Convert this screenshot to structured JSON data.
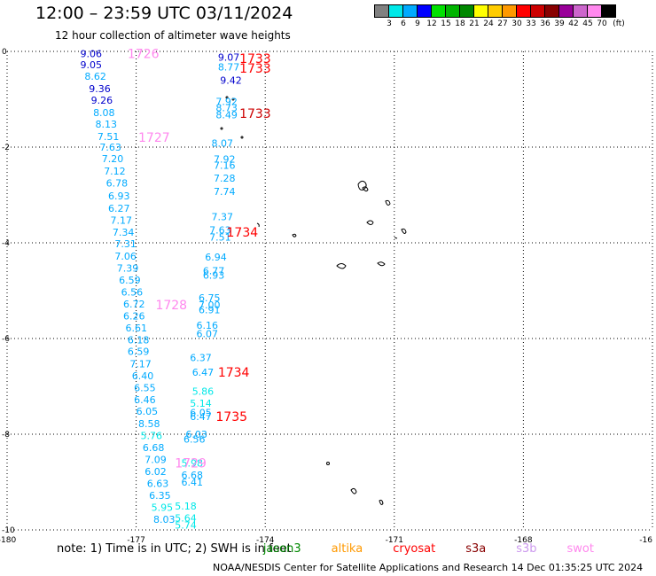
{
  "title": "12:00 – 23:59 UTC 03/11/2024",
  "subtitle": "12 hour collection of altimeter wave heights",
  "legend": {
    "unit": "(ft)",
    "colors": [
      "#808080",
      "#00e8e8",
      "#00aaff",
      "#0000ff",
      "#00e000",
      "#00b400",
      "#008800",
      "#ffff00",
      "#ffcc00",
      "#ff9900",
      "#ff0000",
      "#cc0000",
      "#880000",
      "#990099",
      "#cc66cc",
      "#ff88ee",
      "#000000"
    ],
    "ticks": [
      "3",
      "6",
      "9",
      "12",
      "15",
      "18",
      "21",
      "24",
      "27",
      "30",
      "33",
      "36",
      "39",
      "42",
      "45",
      "70"
    ]
  },
  "chart_data": {
    "type": "scatter",
    "x_ticks": [
      "-180",
      "-177",
      "-174",
      "-171",
      "-168",
      "-16"
    ],
    "y_ticks": [
      "0",
      "-2",
      "-4",
      "-6",
      "-8",
      "-10"
    ],
    "xlim": [
      -180,
      -165
    ],
    "ylim": [
      -10,
      0
    ],
    "wave_heights": [
      {
        "v": "9.06",
        "c": "#0000cc",
        "x": -178.3,
        "y": -0.05
      },
      {
        "v": "9.05",
        "c": "#0000cc",
        "x": -178.3,
        "y": -0.28
      },
      {
        "v": "8.62",
        "c": "#00aaff",
        "x": -178.2,
        "y": -0.52
      },
      {
        "v": "9.36",
        "c": "#0000cc",
        "x": -178.1,
        "y": -0.78
      },
      {
        "v": "9.26",
        "c": "#0000cc",
        "x": -178.05,
        "y": -1.02
      },
      {
        "v": "8.08",
        "c": "#00aaff",
        "x": -178.0,
        "y": -1.28
      },
      {
        "v": "8.13",
        "c": "#00aaff",
        "x": -177.95,
        "y": -1.52
      },
      {
        "v": "7.51",
        "c": "#00aaff",
        "x": -177.9,
        "y": -1.78
      },
      {
        "v": "7.63",
        "c": "#00aaff",
        "x": -177.85,
        "y": -2.0
      },
      {
        "v": "7.20",
        "c": "#00aaff",
        "x": -177.8,
        "y": -2.24
      },
      {
        "v": "7.12",
        "c": "#00aaff",
        "x": -177.75,
        "y": -2.5
      },
      {
        "v": "6.78",
        "c": "#00aaff",
        "x": -177.7,
        "y": -2.75
      },
      {
        "v": "6.93",
        "c": "#00aaff",
        "x": -177.65,
        "y": -3.02
      },
      {
        "v": "6.27",
        "c": "#00aaff",
        "x": -177.65,
        "y": -3.28
      },
      {
        "v": "7.17",
        "c": "#00aaff",
        "x": -177.6,
        "y": -3.53
      },
      {
        "v": "7.34",
        "c": "#00aaff",
        "x": -177.55,
        "y": -3.78
      },
      {
        "v": "7.31",
        "c": "#00aaff",
        "x": -177.5,
        "y": -4.02
      },
      {
        "v": "7.06",
        "c": "#00aaff",
        "x": -177.5,
        "y": -4.28
      },
      {
        "v": "7.39",
        "c": "#00aaff",
        "x": -177.45,
        "y": -4.53
      },
      {
        "v": "6.59",
        "c": "#00aaff",
        "x": -177.4,
        "y": -4.78
      },
      {
        "v": "6.56",
        "c": "#00aaff",
        "x": -177.35,
        "y": -5.03
      },
      {
        "v": "6.72",
        "c": "#00aaff",
        "x": -177.3,
        "y": -5.28
      },
      {
        "v": "6.26",
        "c": "#00aaff",
        "x": -177.3,
        "y": -5.53
      },
      {
        "v": "6.61",
        "c": "#00aaff",
        "x": -177.25,
        "y": -5.78
      },
      {
        "v": "6.18",
        "c": "#00aaff",
        "x": -177.2,
        "y": -6.03
      },
      {
        "v": "6.59",
        "c": "#00aaff",
        "x": -177.2,
        "y": -6.27
      },
      {
        "v": "7.17",
        "c": "#00aaff",
        "x": -177.15,
        "y": -6.53
      },
      {
        "v": "6.40",
        "c": "#00aaff",
        "x": -177.1,
        "y": -6.78
      },
      {
        "v": "6.55",
        "c": "#00aaff",
        "x": -177.05,
        "y": -7.03
      },
      {
        "v": "6.46",
        "c": "#00aaff",
        "x": -177.05,
        "y": -7.28
      },
      {
        "v": "6.05",
        "c": "#00aaff",
        "x": -177.0,
        "y": -7.52
      },
      {
        "v": "8.58",
        "c": "#00aaff",
        "x": -176.95,
        "y": -7.78
      },
      {
        "v": "5.76",
        "c": "#00e8e8",
        "x": -176.9,
        "y": -8.03
      },
      {
        "v": "6.68",
        "c": "#00aaff",
        "x": -176.85,
        "y": -8.28
      },
      {
        "v": "7.09",
        "c": "#00aaff",
        "x": -176.8,
        "y": -8.53
      },
      {
        "v": "6.02",
        "c": "#00aaff",
        "x": -176.8,
        "y": -8.78
      },
      {
        "v": "6.63",
        "c": "#00aaff",
        "x": -176.75,
        "y": -9.03
      },
      {
        "v": "6.35",
        "c": "#00aaff",
        "x": -176.7,
        "y": -9.28
      },
      {
        "v": "5.95",
        "c": "#00e8e8",
        "x": -176.65,
        "y": -9.53
      },
      {
        "v": "8.03",
        "c": "#00aaff",
        "x": -176.6,
        "y": -9.78
      },
      {
        "v": "9.07",
        "c": "#0000cc",
        "x": -175.1,
        "y": -0.12
      },
      {
        "v": "8.77",
        "c": "#00aaff",
        "x": -175.1,
        "y": -0.32
      },
      {
        "v": "9.42",
        "c": "#0000cc",
        "x": -175.05,
        "y": -0.6
      },
      {
        "v": "7.92",
        "c": "#00aaff",
        "x": -175.15,
        "y": -1.05
      },
      {
        "v": "8.73",
        "c": "#00aaff",
        "x": -175.15,
        "y": -1.18
      },
      {
        "v": "8.49",
        "c": "#00aaff",
        "x": -175.15,
        "y": -1.32
      },
      {
        "v": "8.07",
        "c": "#00aaff",
        "x": -175.25,
        "y": -1.92
      },
      {
        "v": "7.92",
        "c": "#00aaff",
        "x": -175.2,
        "y": -2.25
      },
      {
        "v": "7.16",
        "c": "#00aaff",
        "x": -175.2,
        "y": -2.38
      },
      {
        "v": "7.28",
        "c": "#00aaff",
        "x": -175.2,
        "y": -2.65
      },
      {
        "v": "7.74",
        "c": "#00aaff",
        "x": -175.2,
        "y": -2.93
      },
      {
        "v": "7.37",
        "c": "#00aaff",
        "x": -175.25,
        "y": -3.45
      },
      {
        "v": "7.63",
        "c": "#00aaff",
        "x": -175.3,
        "y": -3.73
      },
      {
        "v": "7.51",
        "c": "#00aaff",
        "x": -175.3,
        "y": -3.88
      },
      {
        "v": "6.94",
        "c": "#00aaff",
        "x": -175.4,
        "y": -4.3
      },
      {
        "v": "6.77",
        "c": "#00aaff",
        "x": -175.45,
        "y": -4.58
      },
      {
        "v": "6.93",
        "c": "#00aaff",
        "x": -175.45,
        "y": -4.68
      },
      {
        "v": "6.75",
        "c": "#00aaff",
        "x": -175.55,
        "y": -5.15
      },
      {
        "v": "7.00",
        "c": "#00aaff",
        "x": -175.55,
        "y": -5.3
      },
      {
        "v": "6.91",
        "c": "#00aaff",
        "x": -175.55,
        "y": -5.4
      },
      {
        "v": "6.16",
        "c": "#00aaff",
        "x": -175.6,
        "y": -5.72
      },
      {
        "v": "6.07",
        "c": "#00aaff",
        "x": -175.6,
        "y": -5.9
      },
      {
        "v": "6.37",
        "c": "#00aaff",
        "x": -175.75,
        "y": -6.4
      },
      {
        "v": "6.47",
        "c": "#00aaff",
        "x": -175.7,
        "y": -6.7
      },
      {
        "v": "5.86",
        "c": "#00e8e8",
        "x": -175.7,
        "y": -7.1
      },
      {
        "v": "5.14",
        "c": "#00e8e8",
        "x": -175.75,
        "y": -7.35
      },
      {
        "v": "6.05",
        "c": "#00aaff",
        "x": -175.75,
        "y": -7.55
      },
      {
        "v": "6.47",
        "c": "#00aaff",
        "x": -175.75,
        "y": -7.63
      },
      {
        "v": "6.03",
        "c": "#00aaff",
        "x": -175.85,
        "y": -8.0
      },
      {
        "v": "6.56",
        "c": "#00aaff",
        "x": -175.9,
        "y": -8.1
      },
      {
        "v": "5.98",
        "c": "#00e8e8",
        "x": -175.95,
        "y": -8.6
      },
      {
        "v": "6.68",
        "c": "#00aaff",
        "x": -175.95,
        "y": -8.85
      },
      {
        "v": "6.41",
        "c": "#00aaff",
        "x": -175.95,
        "y": -9.0
      },
      {
        "v": "5.18",
        "c": "#00e8e8",
        "x": -176.1,
        "y": -9.5
      },
      {
        "v": "5.64",
        "c": "#00e8e8",
        "x": -176.1,
        "y": -9.75
      },
      {
        "v": "5.74",
        "c": "#00e8e8",
        "x": -176.1,
        "y": -9.9
      }
    ],
    "pass_labels": [
      {
        "v": "1726",
        "c": "#ff88ee",
        "x": -177.2,
        "y": -0.05
      },
      {
        "v": "1727",
        "c": "#ff88ee",
        "x": -176.95,
        "y": -1.8
      },
      {
        "v": "1728",
        "c": "#ff88ee",
        "x": -176.55,
        "y": -5.3
      },
      {
        "v": "1729",
        "c": "#ff88ee",
        "x": -176.1,
        "y": -8.6
      },
      {
        "v": "1733",
        "c": "#ff0000",
        "x": -174.6,
        "y": -0.15
      },
      {
        "v": "1733",
        "c": "#ff0000",
        "x": -174.6,
        "y": -0.35
      },
      {
        "v": "1733",
        "c": "#cc0000",
        "x": -174.6,
        "y": -1.3
      },
      {
        "v": "1734",
        "c": "#ff0000",
        "x": -174.9,
        "y": -3.78
      },
      {
        "v": "1734",
        "c": "#ff0000",
        "x": -175.1,
        "y": -6.7
      },
      {
        "v": "1735",
        "c": "#ff0000",
        "x": -175.15,
        "y": -7.63
      }
    ]
  },
  "note": {
    "prefix": "note:  1) Time is in UTC;  2) SWH is in feet",
    "satellites": [
      {
        "name": "jason3",
        "color": "#008800"
      },
      {
        "name": "altika",
        "color": "#ff9900"
      },
      {
        "name": "cryosat",
        "color": "#ff0000"
      },
      {
        "name": "s3a",
        "color": "#880000"
      },
      {
        "name": "s3b",
        "color": "#cc99ee"
      },
      {
        "name": "swot",
        "color": "#ff88ee"
      }
    ]
  },
  "credit": "NOAA/NESDIS Center for Satellite Applications and Research    14 Dec 01:35:25 UTC 2024"
}
